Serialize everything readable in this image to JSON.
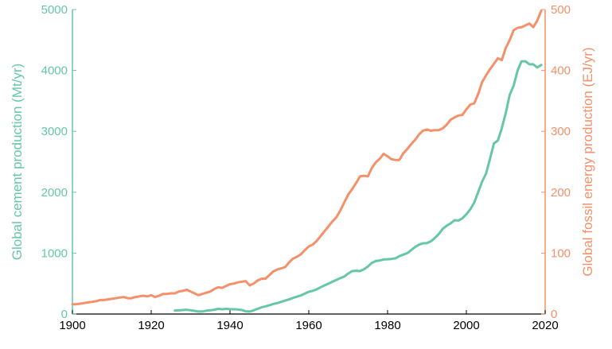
{
  "chart_data": {
    "type": "line",
    "title": "",
    "xlabel": "",
    "y_left_label": "Global cement production (Mt/yr)",
    "y_right_label": "Global fossil energy production (EJ/yr)",
    "xlim": [
      1900,
      2020
    ],
    "ylim_left": [
      0,
      5000
    ],
    "ylim_right": [
      0,
      500
    ],
    "x_ticks": [
      "1900",
      "1920",
      "1940",
      "1960",
      "1980",
      "2000",
      "2020"
    ],
    "y_left_ticks": [
      "0",
      "1000",
      "2000",
      "3000",
      "4000",
      "5000"
    ],
    "y_right_ticks": [
      "0",
      "100",
      "200",
      "300",
      "400",
      "500"
    ],
    "colors": {
      "cement": "#66c7a5",
      "energy": "#f4906a",
      "axis": "#000000"
    },
    "grid": false,
    "series": [
      {
        "key": "energy",
        "axis": "right",
        "x": [
          1900,
          1901,
          1902,
          1903,
          1904,
          1905,
          1906,
          1907,
          1908,
          1909,
          1910,
          1911,
          1912,
          1913,
          1914,
          1915,
          1916,
          1917,
          1918,
          1919,
          1920,
          1921,
          1922,
          1923,
          1924,
          1925,
          1926,
          1927,
          1928,
          1929,
          1930,
          1931,
          1932,
          1933,
          1934,
          1935,
          1936,
          1937,
          1938,
          1939,
          1940,
          1941,
          1942,
          1943,
          1944,
          1945,
          1946,
          1947,
          1948,
          1949,
          1950,
          1951,
          1952,
          1953,
          1954,
          1955,
          1956,
          1957,
          1958,
          1959,
          1960,
          1961,
          1962,
          1963,
          1964,
          1965,
          1966,
          1967,
          1968,
          1969,
          1970,
          1971,
          1972,
          1973,
          1974,
          1975,
          1976,
          1977,
          1978,
          1979,
          1980,
          1981,
          1982,
          1983,
          1984,
          1985,
          1986,
          1987,
          1988,
          1989,
          1990,
          1991,
          1992,
          1993,
          1994,
          1995,
          1996,
          1997,
          1998,
          1999,
          2000,
          2001,
          2002,
          2003,
          2004,
          2005,
          2006,
          2007,
          2008,
          2009,
          2010,
          2011,
          2012,
          2013,
          2014,
          2015,
          2016,
          2017,
          2018,
          2019
        ],
        "values": [
          16,
          16,
          17,
          18,
          19,
          20,
          21,
          23,
          23,
          24,
          25,
          26,
          27,
          28,
          26,
          26,
          28,
          29,
          30,
          29,
          31,
          28,
          30,
          33,
          33,
          34,
          34,
          37,
          38,
          40,
          37,
          34,
          31,
          33,
          35,
          37,
          41,
          44,
          43,
          46,
          49,
          50,
          52,
          53,
          54,
          47,
          50,
          55,
          58,
          58,
          64,
          70,
          73,
          75,
          77,
          85,
          91,
          94,
          98,
          105,
          111,
          114,
          120,
          128,
          136,
          144,
          152,
          159,
          170,
          183,
          196,
          205,
          215,
          226,
          227,
          226,
          240,
          249,
          255,
          263,
          259,
          254,
          253,
          253,
          264,
          271,
          279,
          286,
          295,
          301,
          303,
          301,
          302,
          302,
          305,
          311,
          319,
          323,
          326,
          327,
          336,
          344,
          346,
          361,
          381,
          392,
          402,
          411,
          420,
          417,
          437,
          450,
          466,
          470,
          471,
          474,
          477,
          471,
          482,
          498
        ]
      },
      {
        "key": "cement",
        "axis": "left",
        "x": [
          1926,
          1927,
          1928,
          1929,
          1930,
          1931,
          1932,
          1933,
          1934,
          1935,
          1936,
          1937,
          1938,
          1939,
          1940,
          1941,
          1942,
          1943,
          1944,
          1945,
          1946,
          1947,
          1948,
          1949,
          1950,
          1951,
          1952,
          1953,
          1954,
          1955,
          1956,
          1957,
          1958,
          1959,
          1960,
          1961,
          1962,
          1963,
          1964,
          1965,
          1966,
          1967,
          1968,
          1969,
          1970,
          1971,
          1972,
          1973,
          1974,
          1975,
          1976,
          1977,
          1978,
          1979,
          1980,
          1981,
          1982,
          1983,
          1984,
          1985,
          1986,
          1987,
          1988,
          1989,
          1990,
          1991,
          1992,
          1993,
          1994,
          1995,
          1996,
          1997,
          1998,
          1999,
          2000,
          2001,
          2002,
          2003,
          2004,
          2005,
          2006,
          2007,
          2008,
          2009,
          2010,
          2011,
          2012,
          2013,
          2014,
          2015,
          2016,
          2017,
          2018,
          2019
        ],
        "values": [
          58,
          60,
          65,
          70,
          62,
          52,
          40,
          42,
          55,
          62,
          70,
          85,
          78,
          85,
          80,
          78,
          75,
          65,
          45,
          40,
          60,
          85,
          110,
          125,
          145,
          165,
          180,
          200,
          220,
          240,
          265,
          285,
          305,
          335,
          365,
          380,
          405,
          440,
          470,
          500,
          530,
          560,
          590,
          615,
          665,
          705,
          710,
          705,
          735,
          780,
          840,
          870,
          880,
          895,
          900,
          905,
          915,
          950,
          975,
          1000,
          1050,
          1100,
          1140,
          1160,
          1165,
          1195,
          1250,
          1315,
          1400,
          1450,
          1490,
          1540,
          1535,
          1570,
          1640,
          1720,
          1830,
          2000,
          2175,
          2310,
          2550,
          2800,
          2850,
          3050,
          3300,
          3600,
          3750,
          4000,
          4150,
          4150,
          4100,
          4100,
          4050,
          4090
        ]
      }
    ]
  }
}
